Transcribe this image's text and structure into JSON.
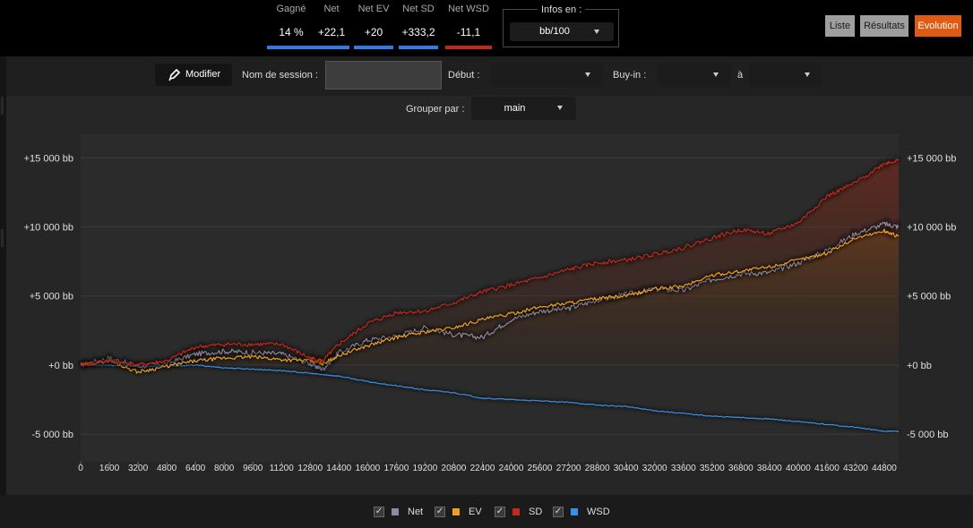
{
  "stats": [
    {
      "label": "Gagné",
      "value": "14 %",
      "color": "#2f7bea"
    },
    {
      "label": "Net",
      "value": "+22,1",
      "color": "#2f7bea"
    },
    {
      "label": "Net EV",
      "value": "+20",
      "color": "#2f7bea"
    },
    {
      "label": "Net SD",
      "value": "+333,2",
      "color": "#2f7bea"
    },
    {
      "label": "Net WSD",
      "value": "-11,1",
      "color": "#c0291b"
    }
  ],
  "infos": {
    "label": "Infos en :",
    "selected": "bb/100"
  },
  "views": {
    "liste": "Liste",
    "resultats": "Résultats",
    "evolution": "Evolution"
  },
  "filters": {
    "modifier": "Modifier",
    "session_label": "Nom de session :",
    "session_value": "",
    "debut_label": "Début :",
    "debut_value": "",
    "buyin_label": "Buy-in :",
    "buyin_from": "",
    "a_label": "à",
    "buyin_to": "",
    "group_label": "Grouper par :",
    "group_value": "main"
  },
  "legend": [
    {
      "name": "Net",
      "color": "#8f8aa0"
    },
    {
      "name": "EV",
      "color": "#f0a020"
    },
    {
      "name": "SD",
      "color": "#c0291b"
    },
    {
      "name": "WSD",
      "color": "#3a8fe8"
    }
  ],
  "chart_data": {
    "type": "line",
    "x": [
      0,
      1600,
      3200,
      4800,
      6400,
      8000,
      9600,
      11200,
      12800,
      13500,
      14400,
      16000,
      17600,
      19200,
      20800,
      22400,
      24000,
      25600,
      27200,
      28800,
      30400,
      32000,
      33600,
      35200,
      36800,
      38400,
      40000,
      41600,
      43200,
      44800,
      45600
    ],
    "series": [
      {
        "name": "Net",
        "color": "#8f8aa0",
        "values": [
          0,
          500,
          -100,
          100,
          800,
          1000,
          900,
          800,
          100,
          -300,
          900,
          1800,
          2100,
          2700,
          2200,
          2000,
          3300,
          3900,
          4100,
          4700,
          5100,
          5500,
          5400,
          6200,
          6600,
          6700,
          7400,
          8300,
          9500,
          10200,
          10000
        ]
      },
      {
        "name": "EV",
        "color": "#f0a020",
        "values": [
          0,
          300,
          -500,
          -100,
          300,
          500,
          600,
          400,
          300,
          100,
          700,
          1400,
          2000,
          2400,
          2700,
          3300,
          3700,
          4200,
          4500,
          4800,
          5000,
          5500,
          5700,
          6500,
          6800,
          7100,
          7600,
          8100,
          9200,
          9700,
          9300
        ]
      },
      {
        "name": "SD",
        "color": "#c0291b",
        "values": [
          0,
          300,
          0,
          300,
          1300,
          1500,
          1500,
          1500,
          500,
          300,
          1500,
          3000,
          3800,
          3900,
          4500,
          5300,
          5800,
          6300,
          6900,
          7400,
          7600,
          8000,
          8500,
          9200,
          9800,
          9500,
          10300,
          12200,
          13200,
          14600,
          14800
        ]
      },
      {
        "name": "WSD",
        "color": "#3a8fe8",
        "values": [
          0,
          0,
          -100,
          -100,
          0,
          -200,
          -300,
          -400,
          -600,
          -700,
          -800,
          -1200,
          -1500,
          -1800,
          -2000,
          -2400,
          -2500,
          -2600,
          -2700,
          -2900,
          -3000,
          -3300,
          -3500,
          -3700,
          -3800,
          -3900,
          -4100,
          -4300,
          -4500,
          -4800,
          -4800
        ]
      }
    ],
    "xlim": [
      0,
      45600
    ],
    "ylim": [
      -7000,
      16700
    ],
    "y_ticks": [
      -5000,
      0,
      5000,
      10000,
      15000
    ],
    "y_tick_labels": [
      "-5 000 bb",
      "+0 bb",
      "+5 000 bb",
      "+10 000 bb",
      "+15 000 bb"
    ],
    "x_tick_labels": [
      "0",
      "1600",
      "3200",
      "4800",
      "6400",
      "8000",
      "9600",
      "11200",
      "12800",
      "14400",
      "16000",
      "17600",
      "19200",
      "20800",
      "22400",
      "24000",
      "25600",
      "27200",
      "28800",
      "30400",
      "32000",
      "33600",
      "35200",
      "36800",
      "38400",
      "40000",
      "41600",
      "43200",
      "44800"
    ],
    "grid": true,
    "legend_position": "bottom"
  }
}
